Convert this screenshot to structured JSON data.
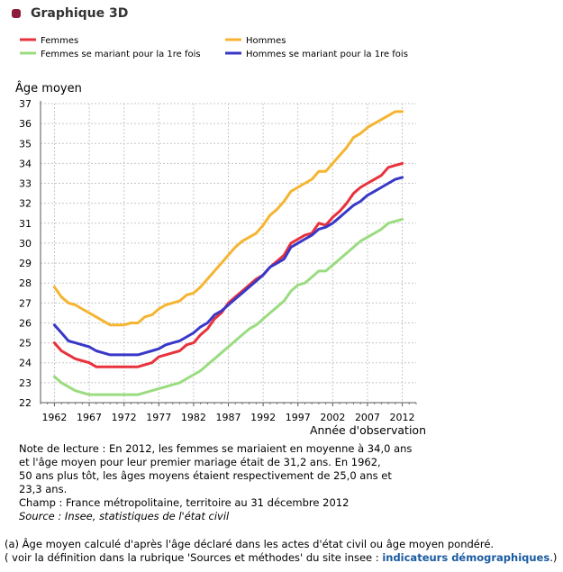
{
  "header": {
    "title": "Graphique 3D"
  },
  "chart_data": {
    "type": "line",
    "ylabel": "Âge moyen",
    "xlabel": "Année d'observation",
    "xlim": [
      1960,
      2014
    ],
    "ylim": [
      22,
      37
    ],
    "xticks": [
      1962,
      1967,
      1972,
      1977,
      1982,
      1987,
      1992,
      1997,
      2002,
      2007,
      2012
    ],
    "yticks": [
      22,
      23,
      24,
      25,
      26,
      27,
      28,
      29,
      30,
      31,
      32,
      33,
      34,
      35,
      36,
      37
    ],
    "grid": true,
    "legend_position": "top",
    "x": [
      1962,
      1963,
      1964,
      1965,
      1966,
      1967,
      1968,
      1969,
      1970,
      1971,
      1972,
      1973,
      1974,
      1975,
      1976,
      1977,
      1978,
      1979,
      1980,
      1981,
      1982,
      1983,
      1984,
      1985,
      1986,
      1987,
      1988,
      1989,
      1990,
      1991,
      1992,
      1993,
      1994,
      1995,
      1996,
      1997,
      1998,
      1999,
      2000,
      2001,
      2002,
      2003,
      2004,
      2005,
      2006,
      2007,
      2008,
      2009,
      2010,
      2011,
      2012
    ],
    "series": [
      {
        "name": "Femmes",
        "color": "#e8323c",
        "values": [
          25.0,
          24.6,
          24.4,
          24.2,
          24.1,
          24.0,
          23.8,
          23.8,
          23.8,
          23.8,
          23.8,
          23.8,
          23.8,
          23.9,
          24.0,
          24.3,
          24.4,
          24.5,
          24.6,
          24.9,
          25.0,
          25.4,
          25.7,
          26.2,
          26.5,
          27.0,
          27.3,
          27.6,
          27.9,
          28.2,
          28.4,
          28.8,
          29.1,
          29.4,
          30.0,
          30.2,
          30.4,
          30.5,
          31.0,
          30.9,
          31.3,
          31.6,
          32.0,
          32.5,
          32.8,
          33.0,
          33.2,
          33.4,
          33.8,
          33.9,
          34.0
        ]
      },
      {
        "name": "Femmes se mariant pour la 1re fois",
        "color": "#9bdc80",
        "values": [
          23.3,
          23.0,
          22.8,
          22.6,
          22.5,
          22.4,
          22.4,
          22.4,
          22.4,
          22.4,
          22.4,
          22.4,
          22.4,
          22.5,
          22.6,
          22.7,
          22.8,
          22.9,
          23.0,
          23.2,
          23.4,
          23.6,
          23.9,
          24.2,
          24.5,
          24.8,
          25.1,
          25.4,
          25.7,
          25.9,
          26.2,
          26.5,
          26.8,
          27.1,
          27.6,
          27.9,
          28.0,
          28.3,
          28.6,
          28.6,
          28.9,
          29.2,
          29.5,
          29.8,
          30.1,
          30.3,
          30.5,
          30.7,
          31.0,
          31.1,
          31.2
        ]
      },
      {
        "name": "Hommes",
        "color": "#f5b531",
        "values": [
          27.8,
          27.3,
          27.0,
          26.9,
          26.7,
          26.5,
          26.3,
          26.1,
          25.9,
          25.9,
          25.9,
          26.0,
          26.0,
          26.3,
          26.4,
          26.7,
          26.9,
          27.0,
          27.1,
          27.4,
          27.5,
          27.8,
          28.2,
          28.6,
          29.0,
          29.4,
          29.8,
          30.1,
          30.3,
          30.5,
          30.9,
          31.4,
          31.7,
          32.1,
          32.6,
          32.8,
          33.0,
          33.2,
          33.6,
          33.6,
          34.0,
          34.4,
          34.8,
          35.3,
          35.5,
          35.8,
          36.0,
          36.2,
          36.4,
          36.6,
          36.6
        ]
      },
      {
        "name": "Hommes se mariant pour la 1re fois",
        "color": "#3838c8",
        "values": [
          25.9,
          25.5,
          25.1,
          25.0,
          24.9,
          24.8,
          24.6,
          24.5,
          24.4,
          24.4,
          24.4,
          24.4,
          24.4,
          24.5,
          24.6,
          24.7,
          24.9,
          25.0,
          25.1,
          25.3,
          25.5,
          25.8,
          26.0,
          26.4,
          26.6,
          26.9,
          27.2,
          27.5,
          27.8,
          28.1,
          28.4,
          28.8,
          29.0,
          29.2,
          29.8,
          30.0,
          30.2,
          30.4,
          30.7,
          30.8,
          31.0,
          31.3,
          31.6,
          31.9,
          32.1,
          32.4,
          32.6,
          32.8,
          33.0,
          33.2,
          33.3
        ]
      }
    ]
  },
  "note": {
    "line1": "Note de lecture : En 2012, les femmes se mariaient en moyenne à 34,0 ans",
    "line2": "et l'âge moyen pour leur premier mariage était de 31,2 ans. En 1962,",
    "line3": "50 ans plus tôt, les âges moyens étaient respectivement de 25,0 ans et",
    "line4": "23,3 ans.",
    "line5": "Champ : France métropolitaine, territoire au 31 décembre 2012",
    "source": "Source : Insee, statistiques de l'état civil"
  },
  "footnote": {
    "line1": "(a) Âge moyen calculé d'après l'âge déclaré dans les actes d'état civil ou âge moyen pondéré.",
    "line2_prefix": "( voir la définition dans la rubrique 'Sources et méthodes' du site insee :",
    "link": "indicateurs démographiques",
    "line2_suffix": ".)"
  }
}
